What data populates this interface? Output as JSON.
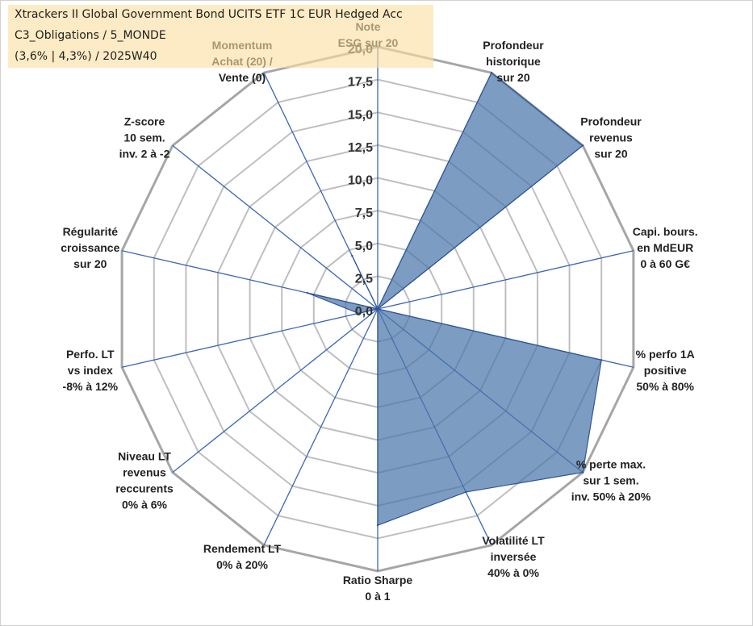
{
  "title_lines": [
    "Xtrackers II Global Government Bond UCITS ETF 1C EUR Hedged Acc",
    "C3_Obligations / 5_MONDE",
    "(3,6% | 4,3%) / 2025W40"
  ],
  "chart_data": {
    "type": "radar",
    "axes": [
      {
        "label": [
          "Note",
          "ESG sur 20"
        ],
        "value": 0
      },
      {
        "label": [
          "Profondeur",
          "historique",
          "sur 20"
        ],
        "value": 20
      },
      {
        "label": [
          "Profondeur",
          "revenus",
          "sur 20"
        ],
        "value": 20
      },
      {
        "label": [
          "Capi. bours.",
          "en MdEUR",
          "0 à 60 G€"
        ],
        "value": 0
      },
      {
        "label": [
          "% perfo 1A",
          "positive",
          "50% à 80%"
        ],
        "value": 17.5
      },
      {
        "label": [
          "% perte max.",
          "sur 1 sem.",
          "inv. 50% à 20%"
        ],
        "value": 20
      },
      {
        "label": [
          "Volatilité LT",
          "inversée",
          "40% à 0%"
        ],
        "value": 15.5
      },
      {
        "label": [
          "Ratio Sharpe",
          "0 à 1"
        ],
        "value": 16.5
      },
      {
        "label": [
          "Rendement LT",
          "0% à 20%"
        ],
        "value": 0
      },
      {
        "label": [
          "Niveau LT",
          "revenus",
          "reccurents",
          "0% à 6%"
        ],
        "value": 0
      },
      {
        "label": [
          "Perfo. LT",
          "vs index",
          "-8% à 12%"
        ],
        "value": 1.5
      },
      {
        "label": [
          "Régularité",
          "croissance",
          "sur 20"
        ],
        "value": 5.5
      },
      {
        "label": [
          "Z-score",
          "10 sem.",
          "inv. 2 à -2"
        ],
        "value": 0
      },
      {
        "label": [
          "Momentum",
          "Achat (20) /",
          "Vente (0)"
        ],
        "value": 4.5
      }
    ],
    "ticks": [
      "0,0",
      "2,5",
      "5,0",
      "7,5",
      "10,0",
      "12,5",
      "15,0",
      "17,5",
      "20,0"
    ],
    "rmin": 0,
    "rmax": 20,
    "colors": {
      "fill": "#4a76aa",
      "stroke": "#2f5597",
      "spoke": "#3b67b5",
      "grid": "#bfbfbf",
      "grid_outer": "#a6a6a6",
      "tick_text": "#333333",
      "axis_label_highlight": "#9a8f7a"
    }
  }
}
